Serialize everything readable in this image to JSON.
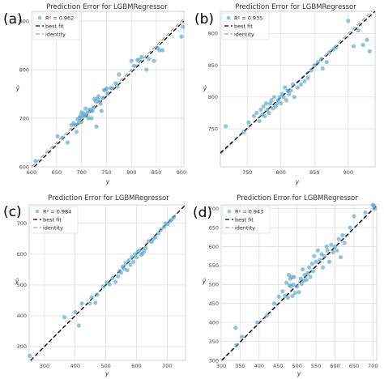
{
  "colors": {
    "points": "#5ea8c9",
    "best_fit": "#000000",
    "identity": "#8a8a8a",
    "grid": "#dcdcdc"
  },
  "chart_data": [
    {
      "type": "scatter",
      "panel_label": "(a)",
      "title": "Prediction Error for LGBMRegressor",
      "xlabel": "y",
      "ylabel": "ŷ",
      "xlim": [
        600,
        905
      ],
      "ylim": [
        600,
        920
      ],
      "xticks": [
        600,
        650,
        700,
        750,
        800,
        850,
        900
      ],
      "yticks": [
        600,
        700,
        800,
        900
      ],
      "grid": true,
      "legend_position": "top-left",
      "legend": {
        "r2": "R² = 0.962",
        "best_fit": "best fit",
        "identity": "identity"
      },
      "best_fit": [
        [
          600,
          595
        ],
        [
          905,
          900
        ]
      ],
      "x": [
        608,
        652,
        662,
        672,
        680,
        684,
        688,
        690,
        692,
        694,
        696,
        698,
        700,
        700,
        702,
        704,
        706,
        708,
        710,
        712,
        714,
        716,
        718,
        720,
        722,
        724,
        726,
        728,
        730,
        732,
        734,
        736,
        738,
        740,
        742,
        745,
        748,
        750,
        752,
        758,
        762,
        768,
        772,
        775,
        800,
        805,
        812,
        815,
        820,
        830,
        835,
        845,
        852,
        856,
        862,
        900,
        903
      ],
      "y": [
        612,
        663,
        660,
        650,
        686,
        690,
        686,
        672,
        698,
        690,
        701,
        705,
        692,
        712,
        702,
        710,
        706,
        720,
        705,
        712,
        700,
        718,
        716,
        700,
        715,
        722,
        740,
        735,
        683,
        740,
        745,
        735,
        730,
        715,
        742,
        758,
        758,
        761,
        750,
        762,
        762,
        772,
        765,
        790,
        818,
        808,
        820,
        820,
        826,
        800,
        822,
        818,
        845,
        840,
        840,
        868,
        888
      ]
    },
    {
      "type": "scatter",
      "panel_label": "(b)",
      "title": "Prediction Error for LGBMRegressor",
      "xlabel": "y",
      "ylabel": "ŷ",
      "xlim": [
        710,
        940
      ],
      "ylim": [
        690,
        935
      ],
      "xticks": [
        750,
        800,
        850,
        900
      ],
      "yticks": [
        750,
        800,
        850,
        900
      ],
      "grid": true,
      "legend_position": "top-left",
      "legend": {
        "r2": "R² = 0.935",
        "best_fit": "best fit",
        "identity": "identity"
      },
      "best_fit": [
        [
          710,
          712
        ],
        [
          940,
          935
        ]
      ],
      "x": [
        718,
        745,
        752,
        760,
        764,
        768,
        770,
        772,
        774,
        776,
        778,
        780,
        782,
        784,
        786,
        788,
        790,
        792,
        794,
        796,
        798,
        800,
        802,
        804,
        806,
        808,
        810,
        812,
        815,
        818,
        820,
        825,
        830,
        835,
        840,
        845,
        850,
        855,
        860,
        862,
        868,
        872,
        878,
        882,
        900,
        908,
        915,
        922,
        928,
        932
      ],
      "y": [
        754,
        745,
        760,
        770,
        775,
        762,
        780,
        772,
        785,
        770,
        790,
        780,
        775,
        790,
        795,
        782,
        800,
        785,
        790,
        795,
        800,
        790,
        805,
        800,
        815,
        795,
        810,
        805,
        810,
        820,
        800,
        815,
        820,
        825,
        830,
        842,
        850,
        855,
        860,
        845,
        855,
        870,
        875,
        878,
        920,
        880,
        905,
        882,
        890,
        872
      ]
    },
    {
      "type": "scatter",
      "panel_label": "(c)",
      "title": "Prediction Error for LGBMRegressor",
      "xlabel": "y",
      "ylabel": "ŷ",
      "xlim": [
        250,
        760
      ],
      "ylim": [
        255,
        760
      ],
      "xticks": [
        300,
        400,
        500,
        600,
        700
      ],
      "yticks": [
        300,
        400,
        500,
        600,
        700
      ],
      "grid": true,
      "legend_position": "top-left",
      "legend": {
        "r2": "R² = 0.984",
        "best_fit": "best fit",
        "identity": "identity"
      },
      "best_fit": [
        [
          250,
          250
        ],
        [
          760,
          760
        ]
      ],
      "x": [
        252,
        365,
        400,
        412,
        422,
        448,
        454,
        466,
        472,
        492,
        503,
        512,
        522,
        532,
        540,
        545,
        550,
        555,
        560,
        565,
        570,
        575,
        580,
        585,
        590,
        595,
        600,
        605,
        610,
        615,
        620,
        625,
        630,
        640,
        650,
        655,
        662,
        672,
        680,
        690,
        695,
        702,
        710,
        715,
        722
      ],
      "y": [
        270,
        395,
        412,
        368,
        440,
        440,
        460,
        442,
        468,
        495,
        508,
        502,
        522,
        510,
        528,
        545,
        540,
        560,
        552,
        570,
        548,
        580,
        565,
        590,
        575,
        600,
        590,
        608,
        612,
        598,
        602,
        610,
        620,
        642,
        640,
        650,
        655,
        668,
        680,
        688,
        700,
        698,
        708,
        712,
        720
      ]
    },
    {
      "type": "scatter",
      "panel_label": "(d)",
      "title": "Prediction Error for LGBMRegressor",
      "xlabel": "y",
      "ylabel": "ŷ",
      "xlim": [
        300,
        710
      ],
      "ylim": [
        300,
        710
      ],
      "xticks": [
        300,
        350,
        400,
        450,
        500,
        550,
        600,
        650,
        700
      ],
      "yticks": [
        300,
        350,
        400,
        450,
        500,
        550,
        600,
        650,
        700
      ],
      "grid": true,
      "legend_position": "top-left",
      "legend": {
        "r2": "R² = 0.943",
        "best_fit": "best fit",
        "identity": "identity"
      },
      "best_fit": [
        [
          300,
          298
        ],
        [
          710,
          708
        ]
      ],
      "x": [
        338,
        340,
        355,
        395,
        420,
        440,
        452,
        462,
        468,
        472,
        476,
        478,
        480,
        482,
        484,
        486,
        488,
        490,
        492,
        495,
        500,
        505,
        510,
        512,
        515,
        518,
        520,
        525,
        528,
        532,
        535,
        540,
        542,
        545,
        550,
        555,
        560,
        565,
        568,
        572,
        578,
        580,
        585,
        590,
        595,
        600,
        605,
        610,
        615,
        620,
        625,
        640,
        650,
        680,
        700,
        702,
        705
      ],
      "y": [
        386,
        340,
        362,
        400,
        418,
        450,
        468,
        482,
        470,
        505,
        465,
        525,
        498,
        515,
        495,
        520,
        470,
        500,
        520,
        478,
        495,
        480,
        515,
        502,
        540,
        510,
        525,
        512,
        530,
        545,
        520,
        555,
        535,
        575,
        560,
        590,
        565,
        580,
        545,
        575,
        600,
        590,
        560,
        605,
        585,
        600,
        590,
        620,
        572,
        630,
        610,
        650,
        680,
        690,
        710,
        708,
        700
      ]
    }
  ]
}
